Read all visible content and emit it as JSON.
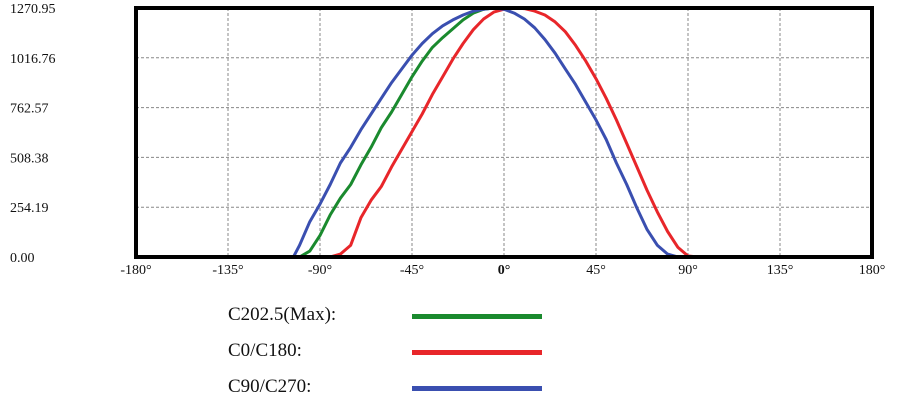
{
  "chart_data": {
    "type": "line",
    "title": "",
    "xlabel": "",
    "ylabel": "",
    "x_ticks": [
      "-180°",
      "-135°",
      "-90°",
      "-45°",
      "0°",
      "45°",
      "90°",
      "135°",
      "180°"
    ],
    "y_ticks": [
      "0.00",
      "254.19",
      "508.38",
      "762.57",
      "1016.76",
      "1270.95"
    ],
    "xlim": [
      -180,
      180
    ],
    "ylim": [
      0,
      1270.95
    ],
    "grid": true,
    "legend_position": "bottom",
    "series": [
      {
        "name": "C202.5(Max):",
        "color": "#1a8a2e",
        "points": [
          [
            -180,
            0
          ],
          [
            -100,
            0
          ],
          [
            -95,
            30
          ],
          [
            -90,
            110
          ],
          [
            -85,
            215
          ],
          [
            -80,
            300
          ],
          [
            -75,
            370
          ],
          [
            -70,
            470
          ],
          [
            -65,
            560
          ],
          [
            -60,
            660
          ],
          [
            -55,
            740
          ],
          [
            -50,
            830
          ],
          [
            -45,
            920
          ],
          [
            -40,
            1000
          ],
          [
            -35,
            1070
          ],
          [
            -30,
            1120
          ],
          [
            -25,
            1165
          ],
          [
            -20,
            1210
          ],
          [
            -15,
            1245
          ],
          [
            -10,
            1265
          ],
          [
            -5,
            1270.95
          ],
          [
            0,
            1268
          ]
        ]
      },
      {
        "name": "C0/C180:",
        "color": "#e8262a",
        "points": [
          [
            -180,
            0
          ],
          [
            -85,
            0
          ],
          [
            -80,
            15
          ],
          [
            -75,
            60
          ],
          [
            -70,
            200
          ],
          [
            -65,
            290
          ],
          [
            -60,
            360
          ],
          [
            -55,
            460
          ],
          [
            -50,
            550
          ],
          [
            -45,
            640
          ],
          [
            -40,
            730
          ],
          [
            -35,
            830
          ],
          [
            -30,
            920
          ],
          [
            -25,
            1010
          ],
          [
            -20,
            1090
          ],
          [
            -15,
            1160
          ],
          [
            -10,
            1215
          ],
          [
            -5,
            1250
          ],
          [
            0,
            1265
          ],
          [
            5,
            1270.95
          ],
          [
            10,
            1268
          ],
          [
            15,
            1255
          ],
          [
            20,
            1235
          ],
          [
            25,
            1200
          ],
          [
            30,
            1150
          ],
          [
            35,
            1080
          ],
          [
            40,
            1000
          ],
          [
            45,
            910
          ],
          [
            50,
            810
          ],
          [
            55,
            700
          ],
          [
            60,
            580
          ],
          [
            65,
            460
          ],
          [
            70,
            340
          ],
          [
            75,
            230
          ],
          [
            80,
            130
          ],
          [
            85,
            50
          ],
          [
            90,
            5
          ],
          [
            95,
            0
          ],
          [
            180,
            0
          ]
        ]
      },
      {
        "name": "C90/C270:",
        "color": "#3a4fb0",
        "points": [
          [
            -180,
            0
          ],
          [
            -103,
            0
          ],
          [
            -100,
            60
          ],
          [
            -95,
            180
          ],
          [
            -90,
            270
          ],
          [
            -85,
            370
          ],
          [
            -80,
            480
          ],
          [
            -75,
            560
          ],
          [
            -70,
            650
          ],
          [
            -65,
            730
          ],
          [
            -60,
            810
          ],
          [
            -55,
            890
          ],
          [
            -50,
            960
          ],
          [
            -45,
            1030
          ],
          [
            -40,
            1090
          ],
          [
            -35,
            1140
          ],
          [
            -30,
            1180
          ],
          [
            -25,
            1210
          ],
          [
            -20,
            1235
          ],
          [
            -15,
            1255
          ],
          [
            -10,
            1265
          ],
          [
            -5,
            1270.95
          ],
          [
            0,
            1265
          ],
          [
            5,
            1245
          ],
          [
            10,
            1215
          ],
          [
            15,
            1170
          ],
          [
            20,
            1110
          ],
          [
            25,
            1040
          ],
          [
            30,
            960
          ],
          [
            35,
            880
          ],
          [
            40,
            790
          ],
          [
            45,
            700
          ],
          [
            50,
            600
          ],
          [
            55,
            480
          ],
          [
            60,
            370
          ],
          [
            65,
            250
          ],
          [
            70,
            140
          ],
          [
            75,
            60
          ],
          [
            80,
            15
          ],
          [
            85,
            0
          ],
          [
            180,
            0
          ]
        ]
      }
    ]
  }
}
